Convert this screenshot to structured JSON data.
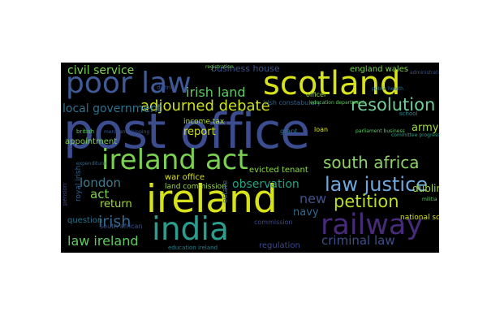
{
  "colors": {
    "background": "#000000",
    "page": "#ffffff"
  },
  "words": [
    {
      "id": "post-office",
      "text": "post office",
      "color": "#3b4d8f"
    },
    {
      "id": "ireland",
      "text": "ireland",
      "color": "#d8e219"
    },
    {
      "id": "ireland-act",
      "text": "ireland act",
      "color": "#7ad151"
    },
    {
      "id": "scotland",
      "text": "scotland",
      "color": "#d8e219"
    },
    {
      "id": "poor-law",
      "text": "poor law",
      "color": "#3e5a98"
    },
    {
      "id": "india",
      "text": "india",
      "color": "#2a9d8f"
    },
    {
      "id": "railway",
      "text": "railway",
      "color": "#472b7a"
    },
    {
      "id": "law-justice",
      "text": "law justice",
      "color": "#6fa8dc"
    },
    {
      "id": "resolution",
      "text": "resolution",
      "color": "#6fcf97"
    },
    {
      "id": "south-africa",
      "text": "south africa",
      "color": "#8fd16b"
    },
    {
      "id": "petition",
      "text": "petition",
      "color": "#b8de29"
    },
    {
      "id": "adjourned-debate",
      "text": "adjourned debate",
      "color": "#cde11d"
    },
    {
      "id": "irish",
      "text": "irish",
      "color": "#31688e"
    },
    {
      "id": "criminal-law",
      "text": "criminal law",
      "color": "#3d4e8a"
    },
    {
      "id": "law-ireland",
      "text": "law ireland",
      "color": "#5ec962"
    },
    {
      "id": "civil-service",
      "text": "civil service",
      "color": "#7ad151"
    },
    {
      "id": "irish-land",
      "text": "irish land",
      "color": "#5ec962"
    },
    {
      "id": "london",
      "text": "london",
      "color": "#3b7c8e"
    },
    {
      "id": "observation",
      "text": "observation",
      "color": "#20a386"
    },
    {
      "id": "report",
      "text": "report",
      "color": "#cde11d"
    },
    {
      "id": "local-government",
      "text": "local government",
      "color": "#2c728e"
    },
    {
      "id": "act",
      "text": "act",
      "color": "#7ad151"
    },
    {
      "id": "return",
      "text": "return",
      "color": "#a0da39"
    },
    {
      "id": "new",
      "text": "new",
      "color": "#3b528b"
    },
    {
      "id": "navy",
      "text": "navy",
      "color": "#31688e"
    },
    {
      "id": "army",
      "text": "army",
      "color": "#9fda3a"
    },
    {
      "id": "dublin",
      "text": "dublin",
      "color": "#a0da39"
    },
    {
      "id": "business-house",
      "text": "business house",
      "color": "#3b528b"
    },
    {
      "id": "england-wales",
      "text": "england wales",
      "color": "#7ad151"
    },
    {
      "id": "appointment",
      "text": "appointment",
      "color": "#7ad151"
    },
    {
      "id": "war-office",
      "text": "war office",
      "color": "#d8e219"
    },
    {
      "id": "land-commission",
      "text": "land commission",
      "color": "#a0da39"
    },
    {
      "id": "evicted-tenant",
      "text": "evicted tenant",
      "color": "#90d743"
    },
    {
      "id": "income-tax",
      "text": "income tax",
      "color": "#b5de2b"
    },
    {
      "id": "question",
      "text": "question",
      "color": "#2c728e"
    },
    {
      "id": "regulation",
      "text": "regulation",
      "color": "#3e4989"
    },
    {
      "id": "national-school",
      "text": "national school",
      "color": "#d8e219"
    },
    {
      "id": "irish-constabulary",
      "text": "irish constabulary",
      "color": "#33638d"
    },
    {
      "id": "commission",
      "text": "commission",
      "color": "#3e4989"
    },
    {
      "id": "south-african",
      "text": "south african",
      "color": "#3b528b"
    },
    {
      "id": "education-department",
      "text": "education department",
      "color": "#5ec962"
    },
    {
      "id": "public-health",
      "text": "public health",
      "color": "#2c728e"
    },
    {
      "id": "royal-irish",
      "text": "royal irish",
      "color": "#33638d"
    },
    {
      "id": "education-ireland",
      "text": "education ireland",
      "color": "#26828e"
    },
    {
      "id": "pension",
      "text": "pension",
      "color": "#3e4989"
    },
    {
      "id": "british",
      "text": "british",
      "color": "#5ec962"
    },
    {
      "id": "merchant-shipping",
      "text": "merchant shipping",
      "color": "#3b528b"
    },
    {
      "id": "parliament-business",
      "text": "parliament business",
      "color": "#5ec962"
    },
    {
      "id": "officer",
      "text": "officer",
      "color": "#a0da39"
    },
    {
      "id": "loan",
      "text": "loan",
      "color": "#d8e219"
    },
    {
      "id": "grant",
      "text": "grant",
      "color": "#2c728e"
    },
    {
      "id": "estate",
      "text": "estate",
      "color": "#2c728e"
    },
    {
      "id": "district",
      "text": "district",
      "color": "#3b528b"
    },
    {
      "id": "school",
      "text": "school",
      "color": "#26828e"
    },
    {
      "id": "militia",
      "text": "militia",
      "color": "#5ec962"
    },
    {
      "id": "committee-progress",
      "text": "committee progress",
      "color": "#20a386"
    },
    {
      "id": "administration",
      "text": "administration",
      "color": "#3b528b"
    },
    {
      "id": "registration",
      "text": "registration",
      "color": "#6ece58"
    },
    {
      "id": "expenditure",
      "text": "expenditure",
      "color": "#31688e"
    }
  ]
}
